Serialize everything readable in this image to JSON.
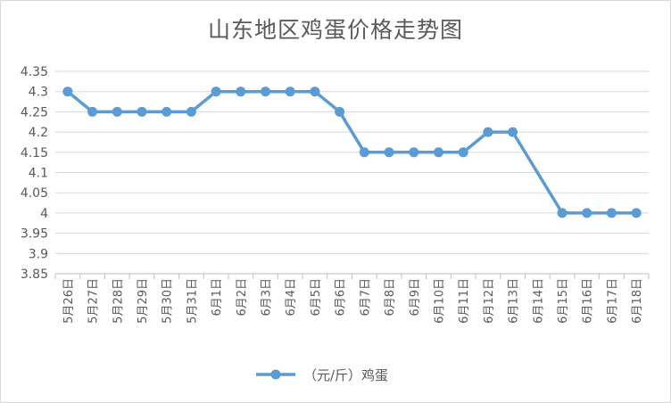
{
  "chart_data": {
    "type": "line",
    "title": "山东地区鸡蛋价格走势图",
    "categories": [
      "5月26日",
      "5月27日",
      "5月28日",
      "5月29日",
      "5月30日",
      "5月31日",
      "6月1日",
      "6月2日",
      "6月3日",
      "6月4日",
      "6月5日",
      "6月6日",
      "6月7日",
      "6月8日",
      "6月9日",
      "6月10日",
      "6月11日",
      "6月12日",
      "6月13日",
      "6月14日",
      "6月15日",
      "6月16日",
      "6月17日",
      "6月18日"
    ],
    "series": [
      {
        "name": "（元/斤）鸡蛋",
        "color": "#5b9bd5",
        "values": [
          4.3,
          4.25,
          4.25,
          4.25,
          4.25,
          4.25,
          4.3,
          4.3,
          4.3,
          4.3,
          4.3,
          4.25,
          4.15,
          4.15,
          4.15,
          4.15,
          4.15,
          4.2,
          4.2,
          null,
          4.0,
          4.0,
          4.0,
          4.0
        ]
      }
    ],
    "ylim": [
      3.85,
      4.35
    ],
    "yticks": [
      "4.35",
      "4.3",
      "4.25",
      "4.2",
      "4.15",
      "4.1",
      "4.05",
      "4",
      "3.95",
      "3.9",
      "3.85"
    ],
    "grid": true,
    "legend": "bottom"
  }
}
